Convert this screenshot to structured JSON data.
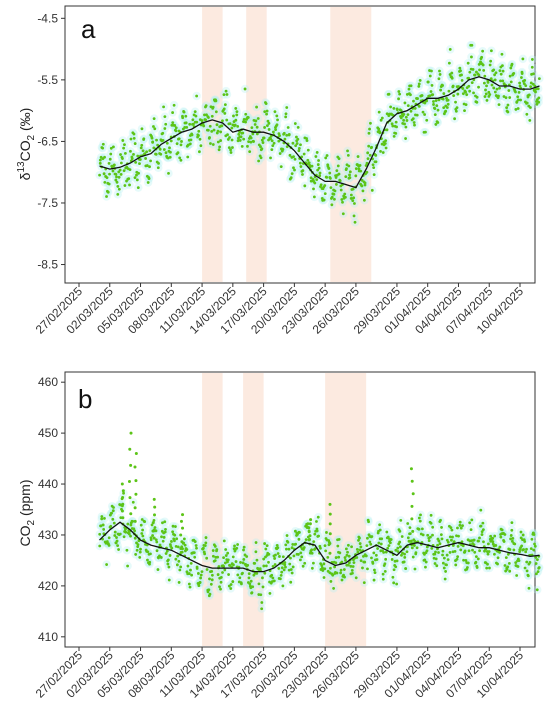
{
  "chart_data": [
    {
      "type": "scatter",
      "panel_label": "a",
      "ylabel_main": "δ",
      "ylabel_sup": "13",
      "ylabel_rest": "CO",
      "ylabel_sub": "2",
      "ylabel_unit": " (‰)",
      "ylim": [
        -8.8,
        -4.3
      ],
      "yticks": [
        -4.5,
        -5.5,
        -6.5,
        -7.5,
        -8.5
      ],
      "ytick_labels": [
        "-4.5",
        "-5.5",
        "-6.5",
        "-7.5",
        "-8.5"
      ],
      "xlim": [
        0,
        43
      ],
      "xticks": [
        0,
        3,
        6,
        9,
        12,
        15,
        18,
        21,
        24,
        27,
        31,
        34,
        37,
        40,
        43
      ],
      "xtick_labels": [
        "27/02/2025",
        "02/03/2025",
        "05/03/2025",
        "08/03/2025",
        "11/03/2025",
        "14/03/2025",
        "17/03/2025",
        "20/03/2025",
        "23/03/2025",
        "26/03/2025",
        "29/03/2025",
        "01/04/2025",
        "04/04/2025",
        "07/04/2025",
        "10/04/2025"
      ],
      "shaded_periods": [
        [
          12.0,
          14.0
        ],
        [
          16.3,
          18.3
        ],
        [
          24.5,
          28.5
        ]
      ],
      "smooth_line": {
        "x": [
          2.0,
          3.0,
          4.0,
          5.0,
          6.0,
          7.0,
          8.0,
          9.0,
          10.0,
          11.0,
          12.0,
          13.0,
          14.0,
          15.0,
          16.0,
          17.0,
          18.0,
          19.0,
          20.0,
          21.0,
          22.0,
          23.0,
          24.0,
          25.0,
          26.0,
          27.0,
          28.0,
          29.0,
          30.0,
          31.0,
          32.0,
          33.0,
          34.0,
          35.0,
          36.0,
          37.0,
          38.0,
          39.0,
          40.0,
          41.0,
          42.0,
          43.0,
          44.0,
          45.0
        ],
        "y": [
          -6.9,
          -6.95,
          -6.92,
          -6.85,
          -6.75,
          -6.7,
          -6.55,
          -6.45,
          -6.35,
          -6.3,
          -6.2,
          -6.15,
          -6.2,
          -6.35,
          -6.3,
          -6.35,
          -6.35,
          -6.4,
          -6.5,
          -6.65,
          -6.85,
          -7.05,
          -7.15,
          -7.15,
          -7.2,
          -7.25,
          -6.95,
          -6.6,
          -6.2,
          -6.05,
          -6.0,
          -5.9,
          -5.8,
          -5.8,
          -5.75,
          -5.65,
          -5.5,
          -5.45,
          -5.5,
          -5.6,
          -5.6,
          -5.65,
          -5.65,
          -5.6
        ]
      },
      "series": [
        {
          "name": "",
          "color": "#5cc417",
          "noise": 0.28,
          "glow": "#b8f0f0"
        }
      ]
    },
    {
      "type": "scatter",
      "panel_label": "b",
      "ylabel_main": "CO",
      "ylabel_sub": "2",
      "ylabel_unit": " (ppm)",
      "ylim": [
        408,
        462
      ],
      "yticks": [
        410,
        420,
        430,
        440,
        450,
        460
      ],
      "ytick_labels": [
        "410",
        "420",
        "430",
        "440",
        "450",
        "460"
      ],
      "xlim": [
        0,
        43
      ],
      "xticks": [
        0,
        3,
        6,
        9,
        12,
        15,
        18,
        21,
        24,
        27,
        31,
        34,
        37,
        40,
        43
      ],
      "xtick_labels": [
        "27/02/2025",
        "02/03/2025",
        "05/03/2025",
        "08/03/2025",
        "11/03/2025",
        "14/03/2025",
        "17/03/2025",
        "20/03/2025",
        "23/03/2025",
        "26/03/2025",
        "29/03/2025",
        "01/04/2025",
        "04/04/2025",
        "07/04/2025",
        "10/04/2025"
      ],
      "shaded_periods": [
        [
          12.0,
          14.0
        ],
        [
          16.0,
          18.0
        ],
        [
          24.0,
          28.0
        ]
      ],
      "smooth_line": {
        "x": [
          2.0,
          3.0,
          4.0,
          5.0,
          6.0,
          7.0,
          8.0,
          9.0,
          10.0,
          11.0,
          12.0,
          13.0,
          14.0,
          15.0,
          16.0,
          17.0,
          18.0,
          19.0,
          20.0,
          21.0,
          22.0,
          23.0,
          24.0,
          25.0,
          26.0,
          27.0,
          28.0,
          29.0,
          30.0,
          31.0,
          32.0,
          33.0,
          34.0,
          35.0,
          36.0,
          37.0,
          38.0,
          39.0,
          40.0,
          41.0,
          42.0,
          43.0,
          44.0,
          45.0
        ],
        "y": [
          429,
          431,
          432.5,
          431,
          429,
          428,
          427.5,
          427,
          426,
          425,
          424,
          423.5,
          423.5,
          423.5,
          423.5,
          422.8,
          422.8,
          423.5,
          425,
          427,
          428.5,
          428,
          425,
          424,
          424.5,
          426,
          427,
          428,
          427,
          426,
          428,
          428.5,
          428,
          427.5,
          428,
          428.5,
          428,
          427.5,
          427.5,
          427,
          426.5,
          426.2,
          425.8,
          426
        ]
      },
      "spikes": [
        {
          "x": 5.0,
          "y": 450
        },
        {
          "x": 5.5,
          "y": 446
        },
        {
          "x": 4.3,
          "y": 440
        },
        {
          "x": 7.3,
          "y": 437
        },
        {
          "x": 32.5,
          "y": 443
        },
        {
          "x": 24.5,
          "y": 436
        },
        {
          "x": 10.0,
          "y": 434
        },
        {
          "x": 22.5,
          "y": 433
        }
      ],
      "series": [
        {
          "name": "",
          "color": "#5cc417",
          "noise": 3.2,
          "glow": "#b8f0f0"
        }
      ]
    }
  ]
}
